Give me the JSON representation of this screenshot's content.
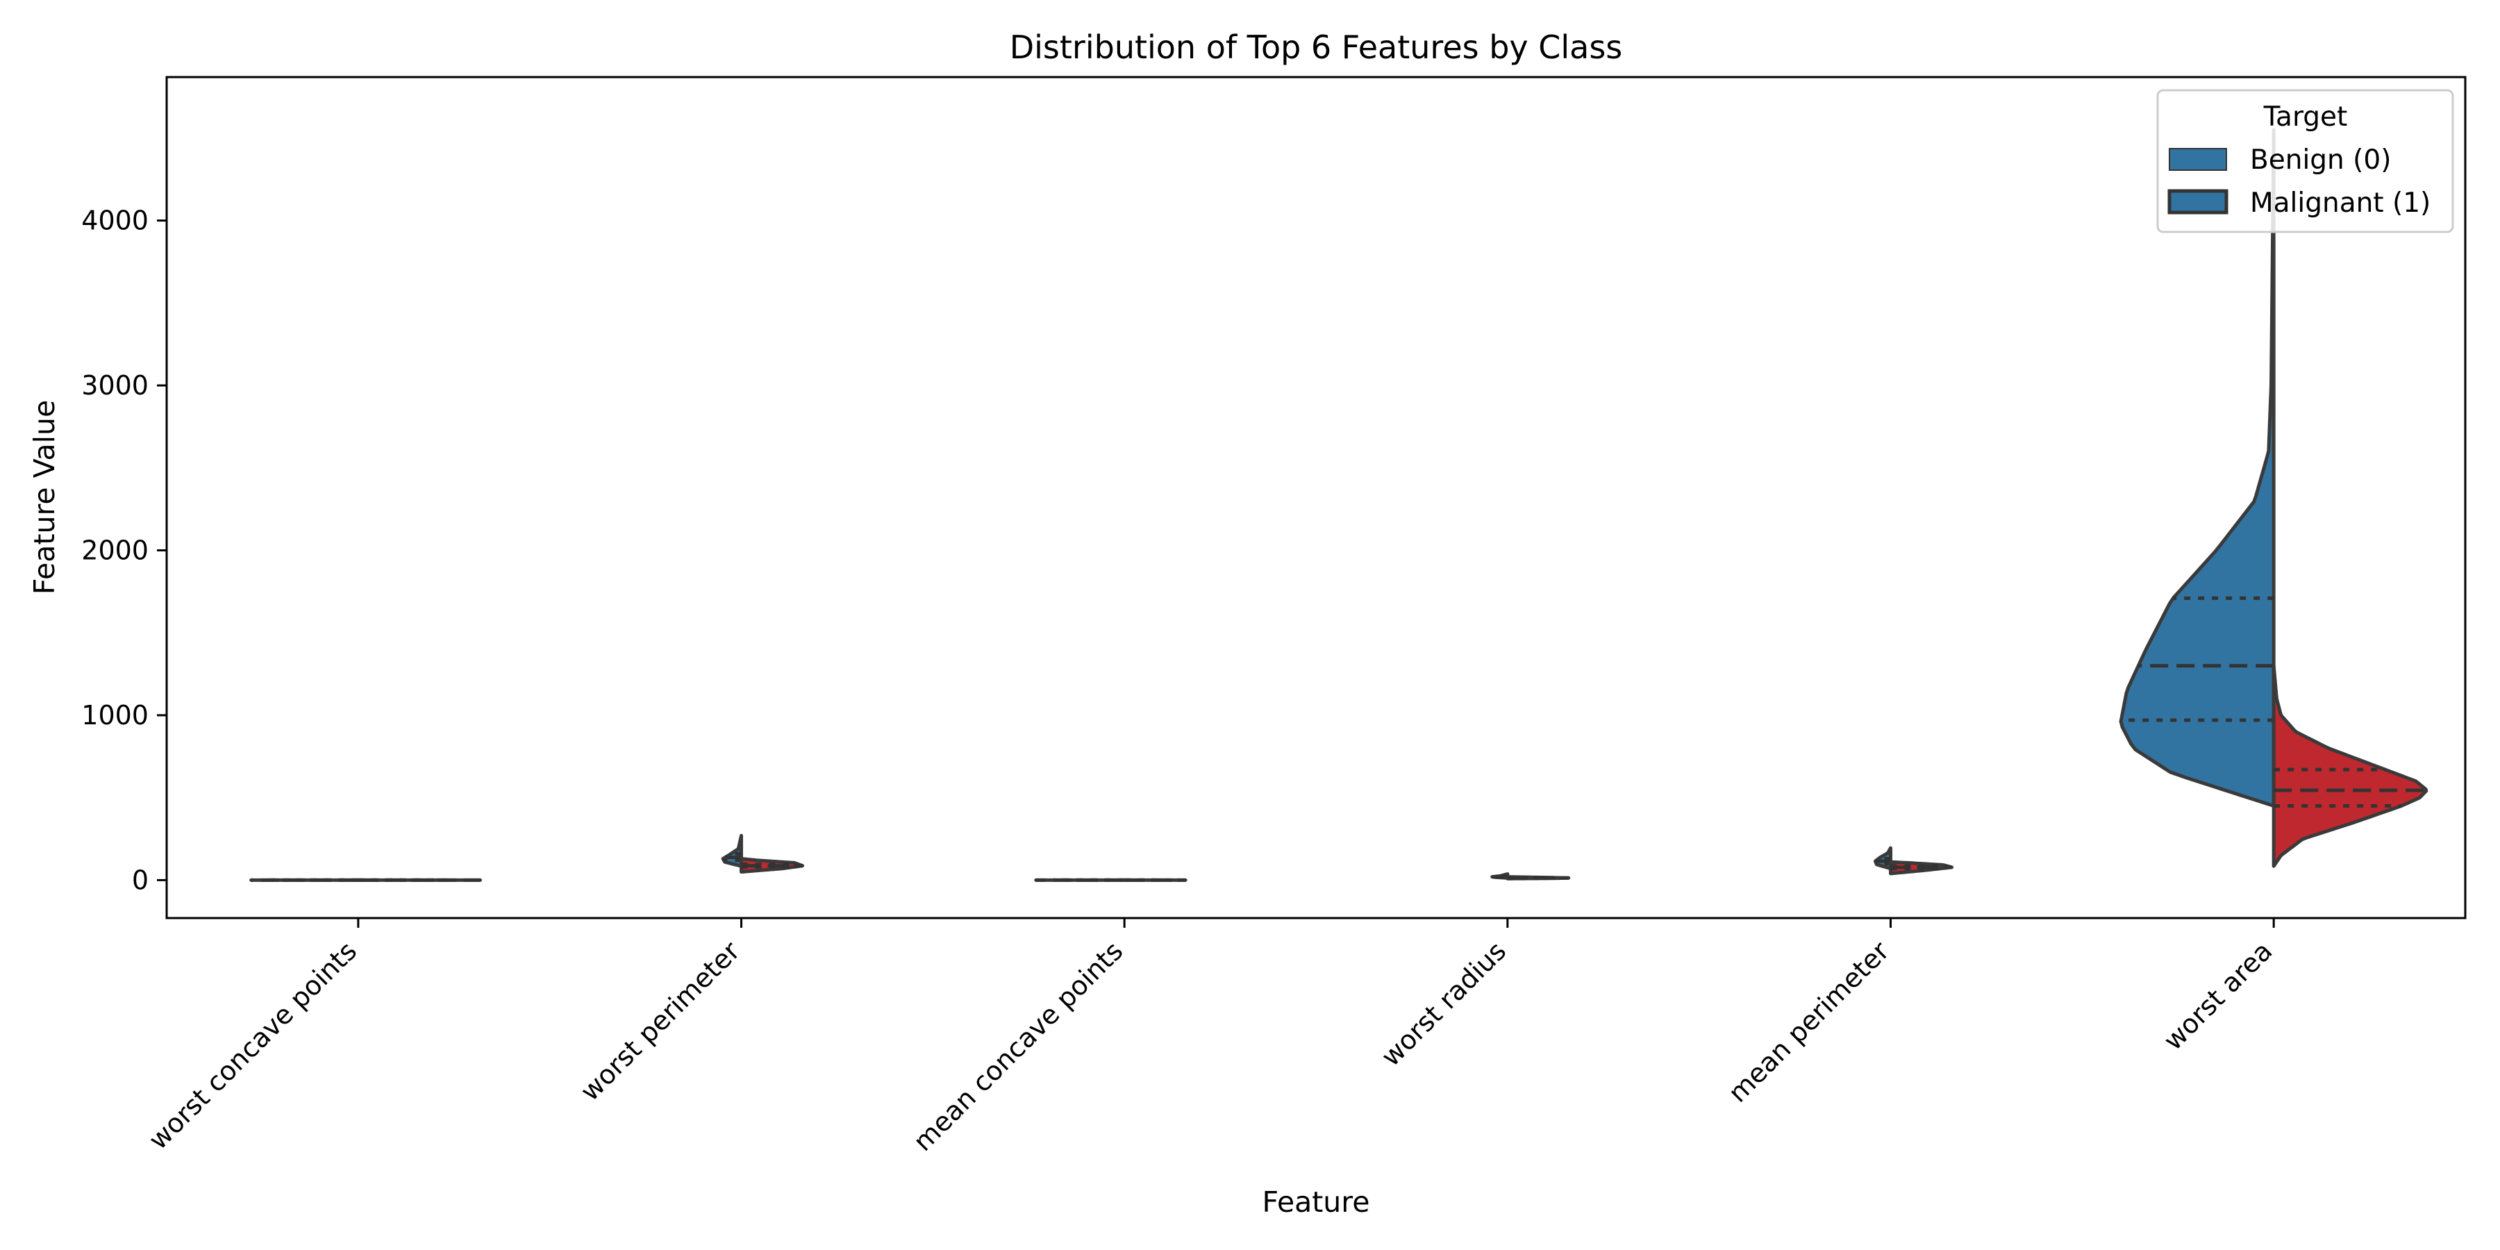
{
  "chart_data": {
    "type": "violin",
    "title": "Distribution of Top 6 Features by Class",
    "xlabel": "Feature",
    "ylabel": "Feature Value",
    "ylim": [
      -230,
      4870
    ],
    "yticks": [
      0,
      1000,
      2000,
      3000,
      4000
    ],
    "grid": false,
    "split": true,
    "inner": "quartile",
    "categories": [
      "worst concave points",
      "worst perimeter",
      "mean concave points",
      "worst radius",
      "mean perimeter",
      "worst area"
    ],
    "legend": {
      "title": "Target",
      "placement": "top-right",
      "entries": [
        {
          "label": "Benign (0)",
          "color": "#3274a1"
        },
        {
          "label": "Malignant (1)",
          "color": "#3274a1"
        }
      ]
    },
    "series": [
      {
        "side": "left",
        "color": "#3274a1",
        "violins": [
          {
            "min": 0.03,
            "max": 0.29,
            "quartiles": [
              0.14,
              0.18,
              0.22
            ],
            "profile": [
              [
                0.03,
                0.0
              ],
              [
                0.1,
                0.7
              ],
              [
                0.18,
                1.0
              ],
              [
                0.24,
                0.7
              ],
              [
                0.29,
                0.0
              ]
            ],
            "width": 0.7
          },
          {
            "min": 85,
            "max": 270,
            "quartiles": [
              120,
              138,
              160
            ],
            "profile": [
              [
                85,
                0.0
              ],
              [
                110,
                0.45
              ],
              [
                130,
                0.5
              ],
              [
                150,
                0.35
              ],
              [
                190,
                0.08
              ],
              [
                270,
                0.0
              ]
            ],
            "width": 0.12
          },
          {
            "min": 0.02,
            "max": 0.2,
            "quartiles": [
              0.07,
              0.09,
              0.11
            ],
            "profile": [
              [
                0.02,
                0.0
              ],
              [
                0.07,
                0.8
              ],
              [
                0.09,
                1.0
              ],
              [
                0.13,
                0.6
              ],
              [
                0.2,
                0.0
              ]
            ],
            "width": 0.58
          },
          {
            "min": 13,
            "max": 37,
            "quartiles": [
              18,
              20,
              23
            ],
            "profile": [
              [
                13,
                0.0
              ],
              [
                17,
                0.6
              ],
              [
                20,
                0.8
              ],
              [
                25,
                0.4
              ],
              [
                37,
                0.0
              ]
            ],
            "width": 0.1
          },
          {
            "min": 70,
            "max": 195,
            "quartiles": [
              100,
              115,
              130
            ],
            "profile": [
              [
                70,
                0.0
              ],
              [
                95,
                0.5
              ],
              [
                115,
                0.55
              ],
              [
                135,
                0.4
              ],
              [
                165,
                0.1
              ],
              [
                195,
                0.0
              ]
            ],
            "width": 0.1
          },
          {
            "min": 450,
            "max": 4550,
            "quartiles": [
              970,
              1300,
              1710
            ],
            "profile": [
              [
                450,
                0.0
              ],
              [
                550,
                0.08
              ],
              [
                650,
                0.16
              ],
              [
                800,
                0.22
              ],
              [
                950,
                0.24
              ],
              [
                1150,
                0.23
              ],
              [
                1400,
                0.2
              ],
              [
                1700,
                0.16
              ],
              [
                2000,
                0.09
              ],
              [
                2300,
                0.03
              ],
              [
                2600,
                0.008
              ],
              [
                3000,
                0.004
              ],
              [
                4550,
                0.0
              ]
            ],
            "width": 1.0
          }
        ]
      },
      {
        "side": "right",
        "color": "#c0282f",
        "violins": [
          {
            "min": 0.0,
            "max": 0.18,
            "quartiles": [
              0.05,
              0.07,
              0.1
            ],
            "profile": [
              [
                0.0,
                0.0
              ],
              [
                0.05,
                0.8
              ],
              [
                0.07,
                1.0
              ],
              [
                0.12,
                0.5
              ],
              [
                0.18,
                0.0
              ]
            ],
            "width": 0.8
          },
          {
            "min": 50,
            "max": 130,
            "quartiles": [
              80,
              87,
              96
            ],
            "profile": [
              [
                50,
                0.0
              ],
              [
                70,
                0.5
              ],
              [
                87,
                0.75
              ],
              [
                105,
                0.65
              ],
              [
                120,
                0.2
              ],
              [
                130,
                0.0
              ]
            ],
            "width": 0.4
          },
          {
            "min": 0.0,
            "max": 0.09,
            "quartiles": [
              0.01,
              0.02,
              0.03
            ],
            "profile": [
              [
                0.0,
                0.0
              ],
              [
                0.02,
                1.0
              ],
              [
                0.05,
                0.6
              ],
              [
                0.09,
                0.0
              ]
            ],
            "width": 0.4
          },
          {
            "min": 9,
            "max": 20,
            "quartiles": [
              12,
              13,
              15
            ],
            "profile": [
              [
                9,
                0.0
              ],
              [
                11,
                0.6
              ],
              [
                13,
                0.8
              ],
              [
                16,
                0.5
              ],
              [
                20,
                0.0
              ]
            ],
            "width": 0.4
          },
          {
            "min": 40,
            "max": 110,
            "quartiles": [
              70,
              78,
              86
            ],
            "profile": [
              [
                40,
                0.0
              ],
              [
                60,
                0.4
              ],
              [
                78,
                0.7
              ],
              [
                92,
                0.6
              ],
              [
                105,
                0.2
              ],
              [
                110,
                0.0
              ]
            ],
            "width": 0.4
          },
          {
            "min": 85,
            "max": 1300,
            "quartiles": [
              450,
              545,
              670
            ],
            "profile": [
              [
                85,
                0.0
              ],
              [
                150,
                0.02
              ],
              [
                250,
                0.08
              ],
              [
                350,
                0.22
              ],
              [
                450,
                0.35
              ],
              [
                500,
                0.4
              ],
              [
                545,
                0.42
              ],
              [
                600,
                0.39
              ],
              [
                700,
                0.27
              ],
              [
                800,
                0.15
              ],
              [
                900,
                0.06
              ],
              [
                1000,
                0.02
              ],
              [
                1100,
                0.008
              ],
              [
                1300,
                0.0
              ]
            ],
            "width": 1.0
          }
        ]
      }
    ]
  }
}
